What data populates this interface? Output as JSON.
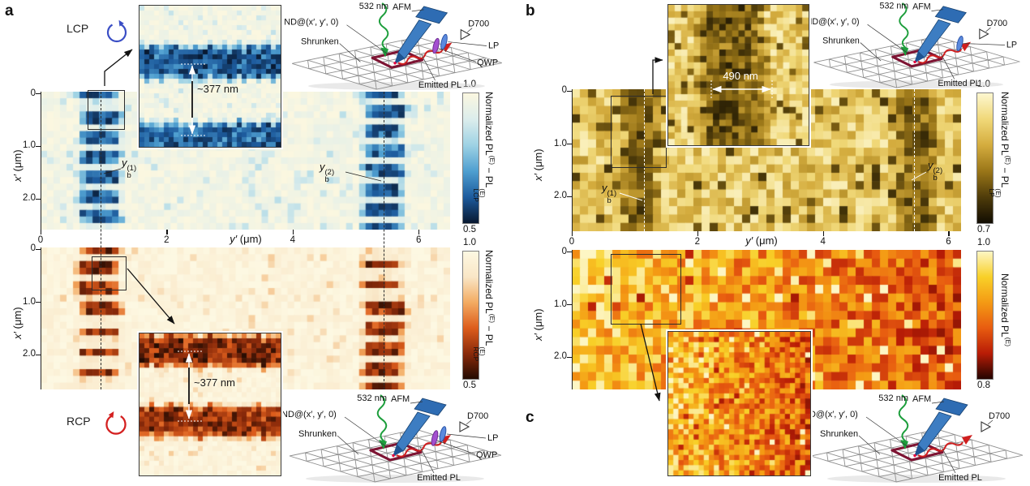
{
  "figure": {
    "panel_letters": {
      "a": "a",
      "b": "b",
      "c": "c"
    },
    "polarization": {
      "lcp": "LCP",
      "rcp": "RCP"
    },
    "measurements": {
      "period": "~377 nm",
      "width": "490 nm"
    },
    "markers": {
      "var": "y",
      "sub": "b",
      "sup1": "(1)",
      "sup2": "(2)"
    },
    "axes": {
      "x_var": "y′",
      "y_var": "x′",
      "unit": " (μm)",
      "x_ticks": [
        "0",
        "2",
        "4",
        "6"
      ],
      "y_ticks": [
        "0",
        "1.0",
        "2.0"
      ]
    },
    "colorbars": {
      "a_top": {
        "max": "1.0",
        "min": "0.5",
        "title_pre": "Normalized PL",
        "title_sup": "(E)",
        "title_mid": " − PL",
        "stack_sup": "(E)",
        "stack_sub": "LCP"
      },
      "a_bottom": {
        "max": "1.0",
        "min": "0.5",
        "title_pre": "Normalized PL",
        "title_sup": "(E)",
        "title_mid": " − PL",
        "stack_sup": "(E)",
        "stack_sub": "RCP"
      },
      "b": {
        "max": "1.0",
        "min": "0.7",
        "title_pre": "Normalized PL",
        "title_sup": "(E)",
        "title_mid": " − PL",
        "stack_sup": "(E)",
        "stack_sub": "LP"
      },
      "c": {
        "max": "1.0",
        "min": "0.8",
        "title_pre": "Normalized PL",
        "title_sup": "(E)"
      }
    },
    "diagram": {
      "excitation_wavelength": "532 nm",
      "afm": "AFM",
      "nd": "ND@(x′, y′, 0)",
      "shrunken": "Shrunken",
      "detector": "D700",
      "lp": "LP",
      "qwp": "QWP",
      "emitted": "Emitted PL"
    },
    "diagrams": [
      {
        "el": "afm1",
        "lp": true,
        "qwp": true
      },
      {
        "el": "afm2",
        "lp": true,
        "qwp": true
      },
      {
        "el": "afm3",
        "lp": true,
        "qwp": false
      },
      {
        "el": "afm4",
        "lp": false,
        "qwp": false
      }
    ]
  },
  "chart_data": {
    "type": "heatmap",
    "colormaps": {
      "lcp": [
        "#fbf7e0",
        "#dcedec",
        "#9ed2e4",
        "#4f9fd0",
        "#1d5b9d",
        "#081830"
      ],
      "rcp": [
        "#fdf8e2",
        "#f9e6c6",
        "#f3ab62",
        "#dd5d1c",
        "#8a2a0a",
        "#230b02"
      ],
      "lp": [
        "#fdf7d0",
        "#f0d878",
        "#d4ac3e",
        "#9a7618",
        "#4f3c0a",
        "#120d02"
      ],
      "c": [
        "#fdf6c4",
        "#f8d028",
        "#f49a14",
        "#e85c10",
        "#b81c06",
        "#240400"
      ]
    },
    "panels": [
      {
        "id": "a_top",
        "el": "cv-a-top",
        "label": "Normalized PL(E) − PL(E)LCP map",
        "cols": 63,
        "rows": 21,
        "value_range": [
          0.5,
          1.0
        ],
        "x_range_um": [
          0,
          6.5
        ],
        "y_range_um": [
          0,
          2.6
        ],
        "base_mean": 0.975,
        "base_noise": 0.035,
        "speckles": [
          {
            "prob": 0.07,
            "val": 0.87
          }
        ],
        "bands": [
          {
            "axis": "v",
            "center": 0.95,
            "halfwidth": 0.38,
            "min": 0.52,
            "jitter": 0.12,
            "stripes": {
              "period": 0.377,
              "duty": 0.62,
              "offset": 0.05
            }
          },
          {
            "axis": "v",
            "center": 5.45,
            "halfwidth": 0.38,
            "min": 0.52,
            "jitter": 0.12,
            "stripes": {
              "period": 0.377,
              "duty": 0.62,
              "offset": 0.15
            }
          }
        ],
        "dashed_lines_um": [
          0.95,
          5.45
        ],
        "colormap": "lcp",
        "seed": 7
      },
      {
        "id": "a_bottom",
        "el": "cv-a-bottom",
        "label": "Normalized PL(E) − PL(E)RCP map",
        "cols": 63,
        "rows": 21,
        "value_range": [
          0.5,
          1.0
        ],
        "x_range_um": [
          0,
          6.5
        ],
        "y_range_um": [
          0,
          2.6
        ],
        "base_mean": 0.975,
        "base_noise": 0.035,
        "speckles": [
          {
            "prob": 0.06,
            "val": 0.88
          }
        ],
        "bands": [
          {
            "axis": "v",
            "center": 0.95,
            "halfwidth": 0.38,
            "min": 0.52,
            "jitter": 0.12,
            "stripes": {
              "period": 0.377,
              "duty": 0.6,
              "offset": 0.08
            }
          },
          {
            "axis": "v",
            "center": 5.45,
            "halfwidth": 0.38,
            "min": 0.52,
            "jitter": 0.12,
            "stripes": {
              "period": 0.377,
              "duty": 0.6,
              "offset": 0.18
            }
          }
        ],
        "dashed_lines_um": [
          0.95,
          5.45
        ],
        "colormap": "rcp",
        "seed": 13
      },
      {
        "id": "b",
        "el": "cv-b",
        "label": "Normalized PL(E) − PL(E)LP map",
        "cols": 48,
        "rows": 17,
        "value_range": [
          0.7,
          1.0
        ],
        "x_range_um": [
          0,
          6.2
        ],
        "y_range_um": [
          0,
          2.7
        ],
        "base_mean": 0.92,
        "base_noise": 0.065,
        "speckles": [
          {
            "prob": 0.1,
            "val": 0.77
          }
        ],
        "bands": [
          {
            "axis": "v",
            "center": 1.08,
            "halfwidth": 0.34,
            "min": 0.73,
            "jitter": 0.18
          },
          {
            "axis": "v",
            "center": 5.5,
            "halfwidth": 0.34,
            "min": 0.73,
            "jitter": 0.18
          }
        ],
        "dashed_lines_um": [
          1.15,
          5.45
        ],
        "line_width_nm": 490,
        "colormap": "lp",
        "seed": 21
      },
      {
        "id": "c",
        "el": "cv-c",
        "label": "Normalized PL(E) map",
        "cols": 48,
        "rows": 16,
        "value_range": [
          0.8,
          1.0
        ],
        "x_range_um": [
          0,
          6.2
        ],
        "y_range_um": [
          0,
          2.7
        ],
        "base_grad": [
          0.955,
          0.875
        ],
        "base_noise": 0.05,
        "speckles": [
          {
            "prob": 0.05,
            "val": 1.0
          },
          {
            "prob": 0.05,
            "val": 0.86
          }
        ],
        "colormap": "c",
        "seed": 33
      },
      {
        "id": "a_top_inset",
        "el": "cv-a-top-inset",
        "label": "zoom of LCP stripes, spacing ~377 nm",
        "cols": 29,
        "rows": 29,
        "value_range": [
          0.5,
          1.0
        ],
        "base_mean": 0.975,
        "base_noise": 0.03,
        "speckles": [
          {
            "prob": 0.06,
            "val": 0.88
          }
        ],
        "bands": [
          {
            "axis": "h",
            "center": 0.4,
            "halfwidth": 0.14,
            "min": 0.5,
            "jitter": 0.05
          },
          {
            "axis": "h",
            "center": 0.93,
            "halfwidth": 0.12,
            "min": 0.52,
            "jitter": 0.05
          }
        ],
        "colormap": "lcp",
        "seed": 5
      },
      {
        "id": "a_bottom_inset",
        "el": "cv-a-bottom-inset",
        "label": "zoom of RCP stripes, spacing ~377 nm",
        "cols": 29,
        "rows": 29,
        "value_range": [
          0.5,
          1.0
        ],
        "base_mean": 0.975,
        "base_noise": 0.03,
        "speckles": [
          {
            "prob": 0.06,
            "val": 0.88
          }
        ],
        "bands": [
          {
            "axis": "h",
            "center": 0.125,
            "halfwidth": 0.13,
            "min": 0.5,
            "jitter": 0.05
          },
          {
            "axis": "h",
            "center": 0.62,
            "halfwidth": 0.13,
            "min": 0.52,
            "jitter": 0.05
          }
        ],
        "colormap": "rcp",
        "seed": 9
      },
      {
        "id": "b_inset",
        "el": "cv-b-inset",
        "label": "zoom of LP dark line, width 490 nm",
        "cols": 22,
        "rows": 22,
        "value_range": [
          0.7,
          1.0
        ],
        "base_mean": 0.93,
        "base_noise": 0.06,
        "speckles": [
          {
            "prob": 0.08,
            "val": 0.78
          }
        ],
        "bands": [
          {
            "axis": "v",
            "center": 0.45,
            "halfwidth": 0.28,
            "min": 0.72,
            "jitter": 0.12
          }
        ],
        "colormap": "lp",
        "seed": 17
      },
      {
        "id": "c_inset",
        "el": "cv-c-inset",
        "label": "zoom of total PL map",
        "cols": 28,
        "rows": 28,
        "value_range": [
          0.8,
          1.0
        ],
        "base_grad": [
          0.95,
          0.88
        ],
        "base_noise": 0.055,
        "speckles": [
          {
            "prob": 0.05,
            "val": 1.0
          },
          {
            "prob": 0.05,
            "val": 0.86
          }
        ],
        "colormap": "c",
        "seed": 25
      }
    ]
  }
}
